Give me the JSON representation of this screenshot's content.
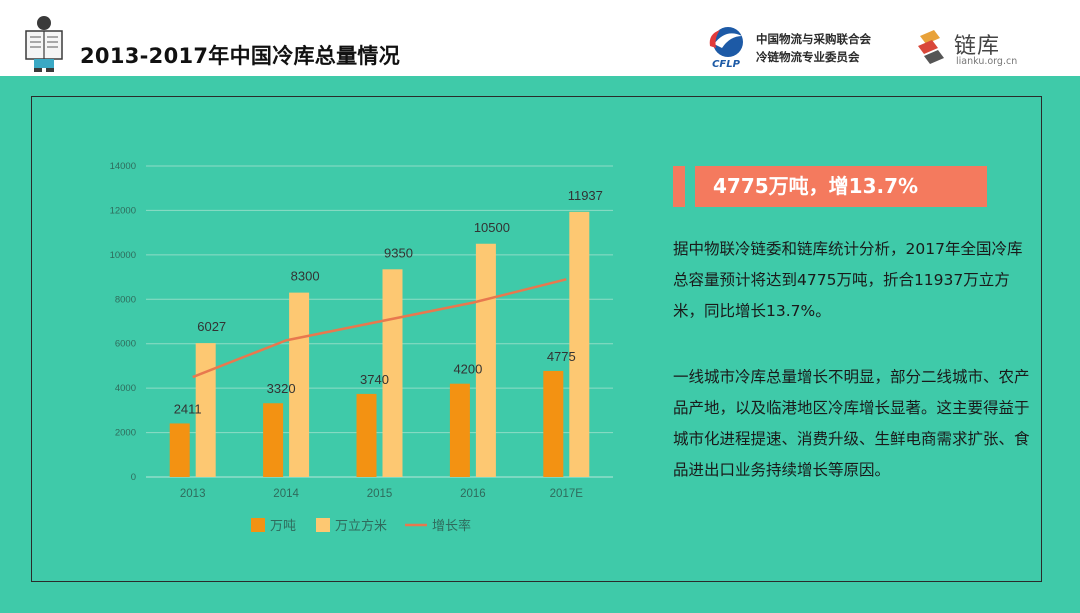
{
  "header": {
    "title": "2013-2017年中国冷库总量情况",
    "org_name_line1": "中国物流与采购联合会",
    "org_name_line2": "冷链物流专业委员会",
    "cflp_label": "CFLP",
    "lianku_name": "链库",
    "lianku_url": "lianku.org.cn"
  },
  "highlight": {
    "text": "4775万吨，增13.7%"
  },
  "paragraphs": [
    "据中物联冷链委和链库统计分析，2017年全国冷库总容量预计将达到4775万吨，折合11937万立方米，同比增长13.7%。",
    "一线城市冷库总量增长不明显，部分二线城市、农产品产地，以及临港地区冷库增长显著。这主要得益于城市化进程提速、消费升级、生鲜电商需求扩张、食品进出口业务持续增长等原因。"
  ],
  "colors": {
    "background": "#3fcaa9",
    "bar_tons": "#f39212",
    "bar_volume": "#fdc872",
    "line_growth": "#e8784e",
    "highlight": "#f47a5e"
  },
  "chart_data": {
    "type": "bar",
    "categories": [
      "2013",
      "2014",
      "2015",
      "2016",
      "2017E"
    ],
    "ylim": [
      0,
      14000
    ],
    "yticks": [
      "0",
      "2000",
      "4000",
      "6000",
      "8000",
      "10000",
      "12000",
      "14000"
    ],
    "grid": true,
    "legend_position": "bottom",
    "series": [
      {
        "name": "万吨",
        "kind": "bar",
        "values": [
          2411,
          3320,
          3740,
          4200,
          4775
        ],
        "labels": [
          "2411",
          "3320",
          "3740",
          "4200",
          "4775"
        ]
      },
      {
        "name": "万立方米",
        "kind": "bar",
        "values": [
          6027,
          8300,
          9350,
          10500,
          11937
        ],
        "labels": [
          "6027",
          "8300",
          "9350",
          "10500",
          "11937"
        ]
      },
      {
        "name": "增长率",
        "kind": "line",
        "values": [
          4500,
          6150,
          7000,
          7850,
          8900
        ]
      }
    ]
  }
}
